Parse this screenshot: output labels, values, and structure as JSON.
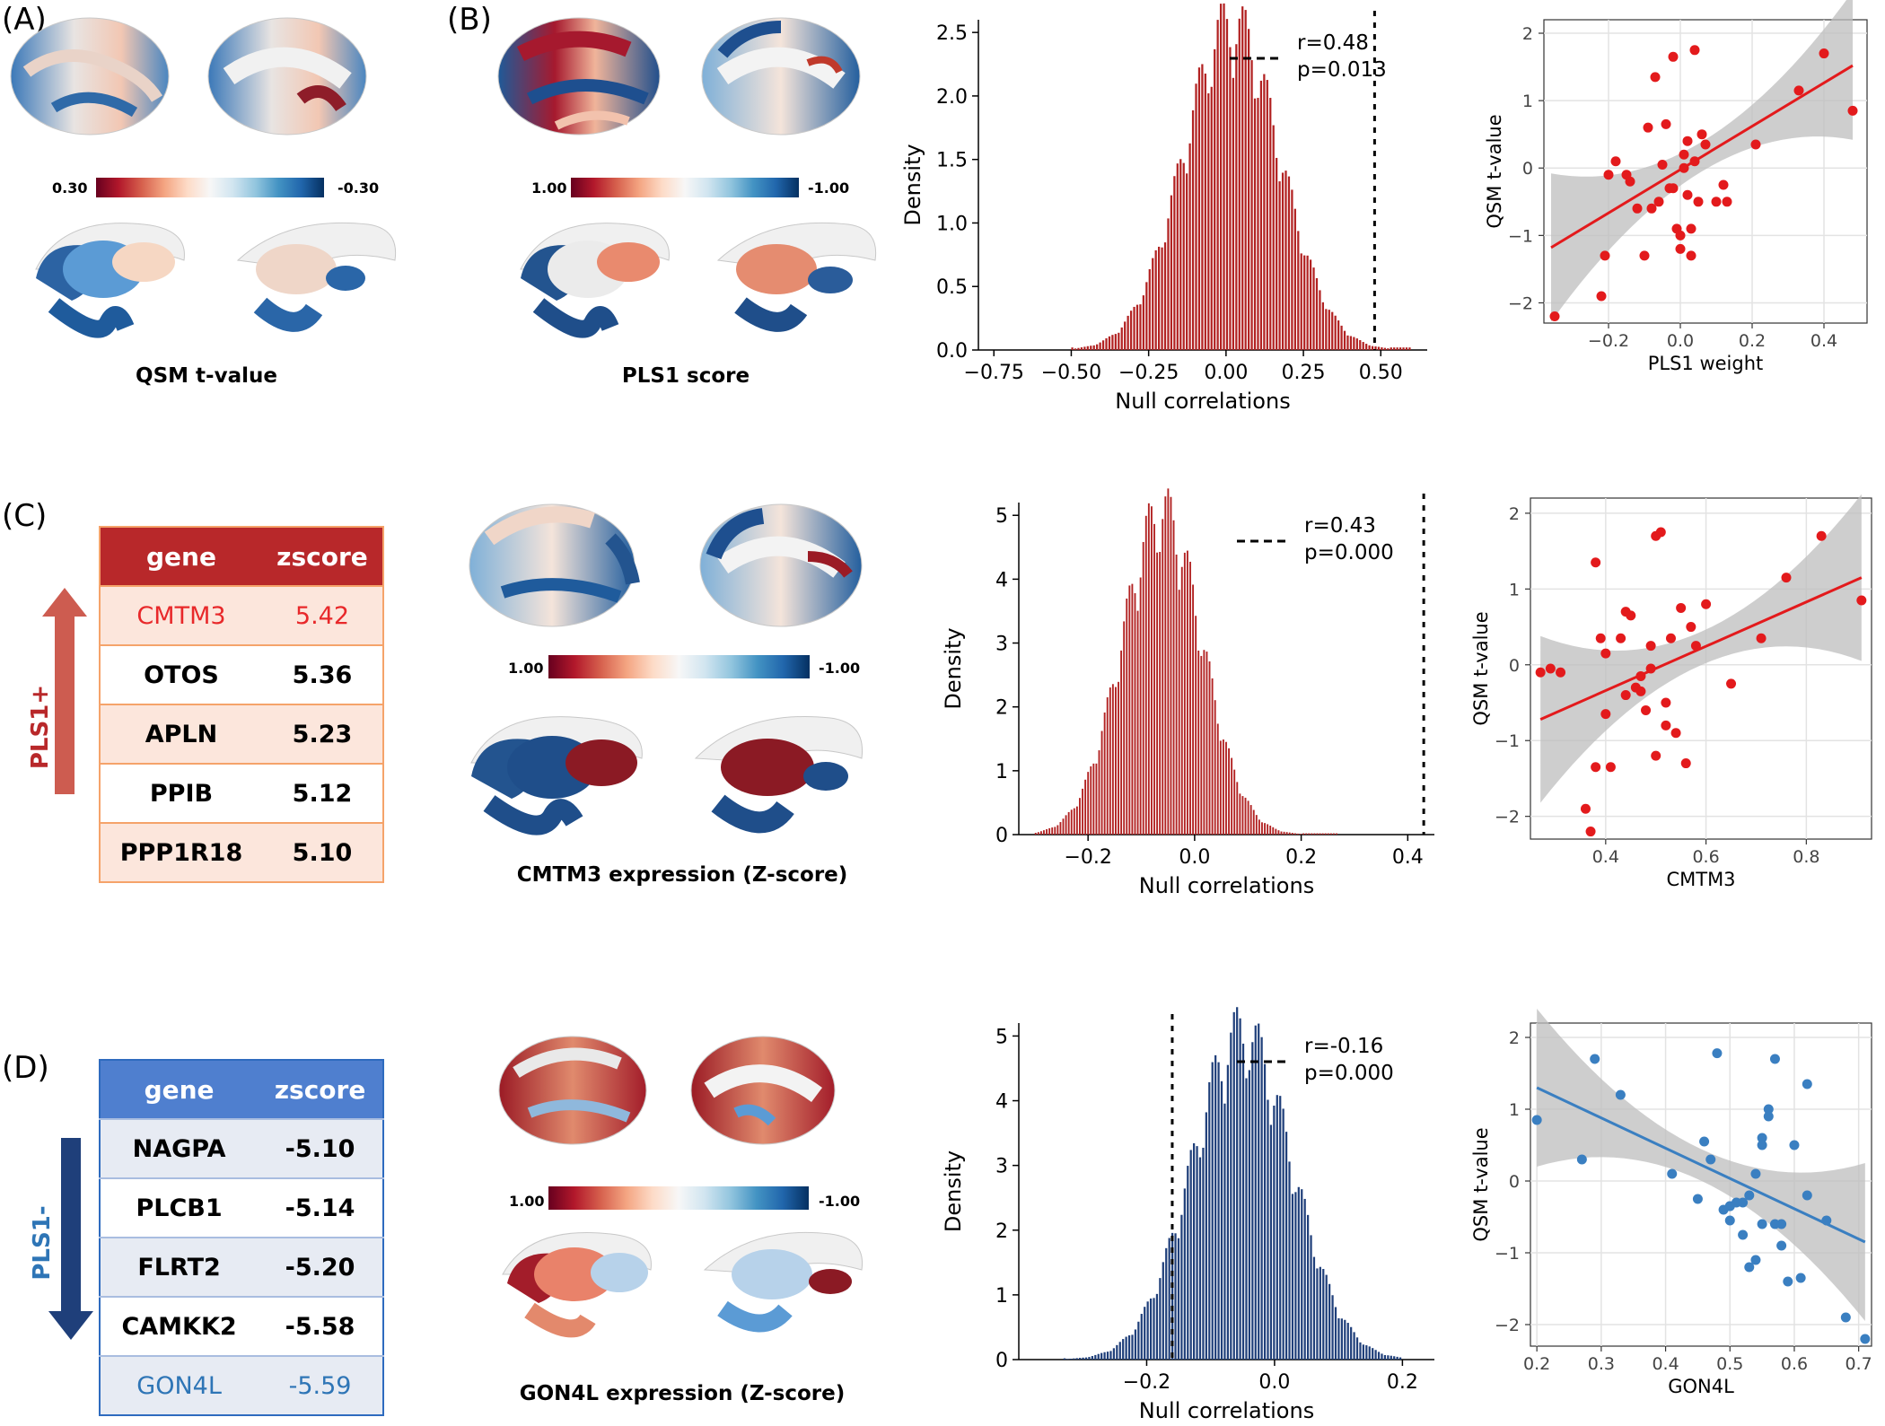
{
  "panels": {
    "A": {
      "letter": "(A)",
      "caption": "QSM t-value",
      "cbar_left": "0.30",
      "cbar_right": "-0.30"
    },
    "B": {
      "letter": "(B)",
      "caption": "PLS1 score",
      "cbar_left": "1.00",
      "cbar_right": "-1.00"
    },
    "C": {
      "letter": "(C)",
      "caption": "CMTM3 expression (Z-score)",
      "cbar_left": "1.00",
      "cbar_right": "-1.00",
      "side_label": "PLS1+",
      "table": {
        "head": [
          "gene",
          "zscore"
        ],
        "rows": [
          [
            "CMTM3",
            "5.42"
          ],
          [
            "OTOS",
            "5.36"
          ],
          [
            "APLN",
            "5.23"
          ],
          [
            "PPIB",
            "5.12"
          ],
          [
            "PPP1R18",
            "5.10"
          ]
        ]
      }
    },
    "D": {
      "letter": "(D)",
      "caption": "GON4L expression (Z-score)",
      "cbar_left": "1.00",
      "cbar_right": "-1.00",
      "side_label": "PLS1-",
      "table": {
        "head": [
          "gene",
          "zscore"
        ],
        "rows": [
          [
            "NAGPA",
            "-5.10"
          ],
          [
            "PLCB1",
            "-5.14"
          ],
          [
            "FLRT2",
            "-5.20"
          ],
          [
            "CAMKK2",
            "-5.58"
          ],
          [
            "GON4L",
            "-5.59"
          ]
        ]
      }
    }
  },
  "colors": {
    "pos_highlight": "#e8282a",
    "neg_highlight": "#2e75b6",
    "hist_red": "#b22222",
    "hist_blue": "#1f3f7a",
    "line_red": "#e31a1c",
    "line_blue": "#3a7fc1"
  },
  "chart_data": [
    {
      "id": "hist1",
      "type": "bar",
      "xlabel": "Null correlations",
      "ylabel": "Density",
      "xlim": [
        -0.8,
        0.65
      ],
      "ylim": [
        0,
        2.6
      ],
      "xticks": [
        "−0.75",
        "−0.50",
        "−0.25",
        "0.00",
        "0.25",
        "0.50"
      ],
      "xtick_values": [
        -0.75,
        -0.5,
        -0.25,
        0,
        0.25,
        0.5
      ],
      "yticks": [
        "0.0",
        "0.5",
        "1.0",
        "1.5",
        "2.0",
        "2.5"
      ],
      "ytick_values": [
        0,
        0.5,
        1,
        1.5,
        2,
        2.5
      ],
      "mean": 0.02,
      "sd": 0.155,
      "peak": 2.5,
      "range": [
        -0.5,
        0.6
      ],
      "observed": 0.48,
      "annot_r": "r=0.48",
      "annot_p": "p=0.013"
    },
    {
      "id": "scatter1",
      "type": "scatter",
      "xlabel": "PLS1 weight",
      "ylabel": "QSM t-value",
      "xlim": [
        -0.38,
        0.52
      ],
      "ylim": [
        -2.3,
        2.2
      ],
      "xticks": [
        "−0.2",
        "0.0",
        "0.2",
        "0.4"
      ],
      "xtick_values": [
        -0.2,
        0,
        0.2,
        0.4
      ],
      "yticks": [
        "−2",
        "−1",
        "0",
        "1",
        "2"
      ],
      "ytick_values": [
        -2,
        -1,
        0,
        1,
        2
      ],
      "fit": {
        "x": [
          -0.36,
          0.48
        ],
        "y": [
          -1.18,
          1.52
        ]
      },
      "x": [
        -0.35,
        -0.22,
        -0.21,
        -0.2,
        -0.18,
        -0.15,
        -0.14,
        -0.12,
        -0.1,
        -0.08,
        -0.07,
        -0.06,
        -0.05,
        -0.04,
        -0.03,
        -0.02,
        -0.01,
        0.0,
        0.01,
        0.02,
        0.03,
        0.04,
        0.05,
        0.06,
        0.07,
        0.1,
        0.12,
        0.13,
        0.21,
        0.33,
        0.4,
        0.48,
        -0.09,
        0.0,
        0.02,
        0.04,
        -0.02,
        0.01,
        0.03
      ],
      "y": [
        -2.2,
        -1.9,
        -1.3,
        -0.1,
        0.1,
        -0.1,
        -0.2,
        -0.6,
        -1.3,
        -0.6,
        1.35,
        -0.5,
        0.05,
        0.65,
        -0.3,
        1.65,
        -0.9,
        -1.2,
        0.2,
        -0.4,
        -1.3,
        1.75,
        -0.5,
        0.5,
        0.35,
        -0.5,
        -0.25,
        -0.5,
        0.35,
        1.15,
        1.7,
        0.85,
        0.6,
        -1.0,
        0.4,
        0.1,
        -0.3,
        0.0,
        -0.9
      ]
    },
    {
      "id": "hist2",
      "type": "bar",
      "xlabel": "Null correlations",
      "ylabel": "Density",
      "xlim": [
        -0.33,
        0.45
      ],
      "ylim": [
        0,
        5.2
      ],
      "xticks": [
        "−0.2",
        "0.0",
        "0.2",
        "0.4"
      ],
      "xtick_values": [
        -0.2,
        0,
        0.2,
        0.4
      ],
      "yticks": [
        "0",
        "1",
        "2",
        "3",
        "4",
        "5"
      ],
      "ytick_values": [
        0,
        1,
        2,
        3,
        4,
        5
      ],
      "mean": -0.06,
      "sd": 0.075,
      "peak": 4.9,
      "range": [
        -0.3,
        0.27
      ],
      "observed": 0.43,
      "annot_r": "r=0.43",
      "annot_p": "p=0.000"
    },
    {
      "id": "scatter2",
      "type": "scatter",
      "xlabel": "CMTM3",
      "ylabel": "QSM t-value",
      "xlim": [
        0.25,
        0.93
      ],
      "ylim": [
        -2.3,
        2.2
      ],
      "xticks": [
        "0.4",
        "0.6",
        "0.8"
      ],
      "xtick_values": [
        0.4,
        0.6,
        0.8
      ],
      "yticks": [
        "−2",
        "−1",
        "0",
        "1",
        "2"
      ],
      "ytick_values": [
        -2,
        -1,
        0,
        1,
        2
      ],
      "fit": {
        "x": [
          0.27,
          0.91
        ],
        "y": [
          -0.72,
          1.15
        ]
      },
      "x": [
        0.27,
        0.29,
        0.31,
        0.36,
        0.37,
        0.38,
        0.38,
        0.39,
        0.4,
        0.41,
        0.43,
        0.44,
        0.45,
        0.46,
        0.47,
        0.48,
        0.49,
        0.5,
        0.5,
        0.51,
        0.52,
        0.53,
        0.54,
        0.55,
        0.56,
        0.57,
        0.58,
        0.6,
        0.65,
        0.71,
        0.76,
        0.83,
        0.91,
        0.47,
        0.49,
        0.52,
        0.4,
        0.44
      ],
      "y": [
        -0.1,
        -0.05,
        -0.1,
        -1.9,
        -2.2,
        1.35,
        -1.35,
        0.35,
        0.15,
        -1.35,
        0.35,
        0.7,
        0.65,
        -0.3,
        -0.35,
        -0.6,
        0.25,
        -1.2,
        1.7,
        1.75,
        -0.8,
        0.35,
        -0.9,
        0.75,
        -1.3,
        0.5,
        0.25,
        0.8,
        -0.25,
        0.35,
        1.15,
        1.7,
        0.85,
        -0.15,
        -0.05,
        -0.5,
        -0.65,
        -0.4
      ]
    },
    {
      "id": "hist3",
      "type": "bar",
      "xlabel": "Null correlations",
      "ylabel": "Density",
      "xlim": [
        -0.4,
        0.25
      ],
      "ylim": [
        0,
        5.2
      ],
      "xticks": [
        "−0.2",
        "0.0",
        "0.2"
      ],
      "xtick_values": [
        -0.2,
        0,
        0.2
      ],
      "yticks": [
        "0",
        "1",
        "2",
        "3",
        "4",
        "5"
      ],
      "ytick_values": [
        0,
        1,
        2,
        3,
        4,
        5
      ],
      "mean": -0.05,
      "sd": 0.078,
      "peak": 4.9,
      "range": [
        -0.33,
        0.2
      ],
      "observed": -0.16,
      "annot_r": "r=-0.16",
      "annot_p": "p=0.000"
    },
    {
      "id": "scatter3",
      "type": "scatter",
      "xlabel": "GON4L",
      "ylabel": "QSM t-value",
      "xlim": [
        0.19,
        0.72
      ],
      "ylim": [
        -2.3,
        2.2
      ],
      "xticks": [
        "0.2",
        "0.3",
        "0.4",
        "0.5",
        "0.6",
        "0.7"
      ],
      "xtick_values": [
        0.2,
        0.3,
        0.4,
        0.5,
        0.6,
        0.7
      ],
      "yticks": [
        "−2",
        "−1",
        "0",
        "1",
        "2"
      ],
      "ytick_values": [
        -2,
        -1,
        0,
        1,
        2
      ],
      "fit": {
        "x": [
          0.2,
          0.71
        ],
        "y": [
          1.3,
          -0.85
        ]
      },
      "x": [
        0.2,
        0.27,
        0.29,
        0.33,
        0.41,
        0.45,
        0.46,
        0.47,
        0.48,
        0.49,
        0.5,
        0.5,
        0.51,
        0.52,
        0.53,
        0.53,
        0.54,
        0.55,
        0.55,
        0.56,
        0.56,
        0.57,
        0.57,
        0.58,
        0.59,
        0.6,
        0.61,
        0.62,
        0.62,
        0.65,
        0.68,
        0.71,
        0.52,
        0.55,
        0.58,
        0.5,
        0.54
      ],
      "y": [
        0.85,
        0.3,
        1.7,
        1.2,
        0.1,
        -0.25,
        0.55,
        0.3,
        1.78,
        -0.4,
        -0.35,
        -0.55,
        -0.3,
        -0.75,
        -1.2,
        -0.2,
        0.1,
        0.6,
        -0.6,
        0.9,
        1.0,
        1.7,
        -0.6,
        -0.6,
        -1.4,
        0.5,
        -1.35,
        -0.2,
        1.35,
        -0.55,
        -1.9,
        -2.2,
        -0.3,
        0.5,
        -0.9,
        -0.35,
        -1.1
      ]
    }
  ]
}
